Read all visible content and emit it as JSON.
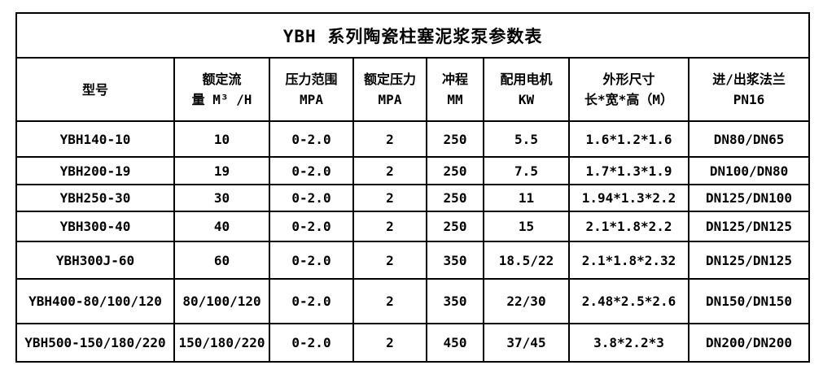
{
  "chart_data": {
    "type": "table",
    "title": "YBH 系列陶瓷柱塞泥浆泵参数表",
    "columns": [
      {
        "id": "model",
        "lines": [
          "型号"
        ]
      },
      {
        "id": "rated-flow",
        "lines": [
          "额定流",
          "量 M³ /H"
        ]
      },
      {
        "id": "pressure-range",
        "lines": [
          "压力范围",
          "MPA"
        ]
      },
      {
        "id": "rated-pressure",
        "lines": [
          "额定压力",
          "MPA"
        ]
      },
      {
        "id": "stroke",
        "lines": [
          "冲程",
          "MM"
        ]
      },
      {
        "id": "motor",
        "lines": [
          "配用电机",
          "KW"
        ]
      },
      {
        "id": "dimensions",
        "lines": [
          "外形尺寸",
          "长*宽*高（M）"
        ]
      },
      {
        "id": "flange",
        "lines": [
          "进/出浆法兰",
          "PN16"
        ]
      }
    ],
    "rows": [
      [
        "YBH140-10",
        "10",
        "0-2.0",
        "2",
        "250",
        "5.5",
        "1.6*1.2*1.6",
        "DN80/DN65"
      ],
      [
        "YBH200-19",
        "19",
        "0-2.0",
        "2",
        "250",
        "7.5",
        "1.7*1.3*1.9",
        "DN100/DN80"
      ],
      [
        "YBH250-30",
        "30",
        "0-2.0",
        "2",
        "250",
        "11",
        "1.94*1.3*2.2",
        "DN125/DN100"
      ],
      [
        "YBH300-40",
        "40",
        "0-2.0",
        "2",
        "250",
        "15",
        "2.1*1.8*2.2",
        "DN125/DN125"
      ],
      [
        "YBH300J-60",
        "60",
        "0-2.0",
        "2",
        "350",
        "18.5/22",
        "2.1*1.8*2.32",
        "DN125/DN125"
      ],
      [
        "YBH400-80/100/120",
        "80/100/120",
        "0-2.0",
        "2",
        "350",
        "22/30",
        "2.48*2.5*2.6",
        "DN150/DN150"
      ],
      [
        "YBH500-150/180/220",
        "150/180/220",
        "0-2.0",
        "2",
        "450",
        "37/45",
        "3.8*2.2*3",
        "DN200/DN200"
      ]
    ]
  }
}
